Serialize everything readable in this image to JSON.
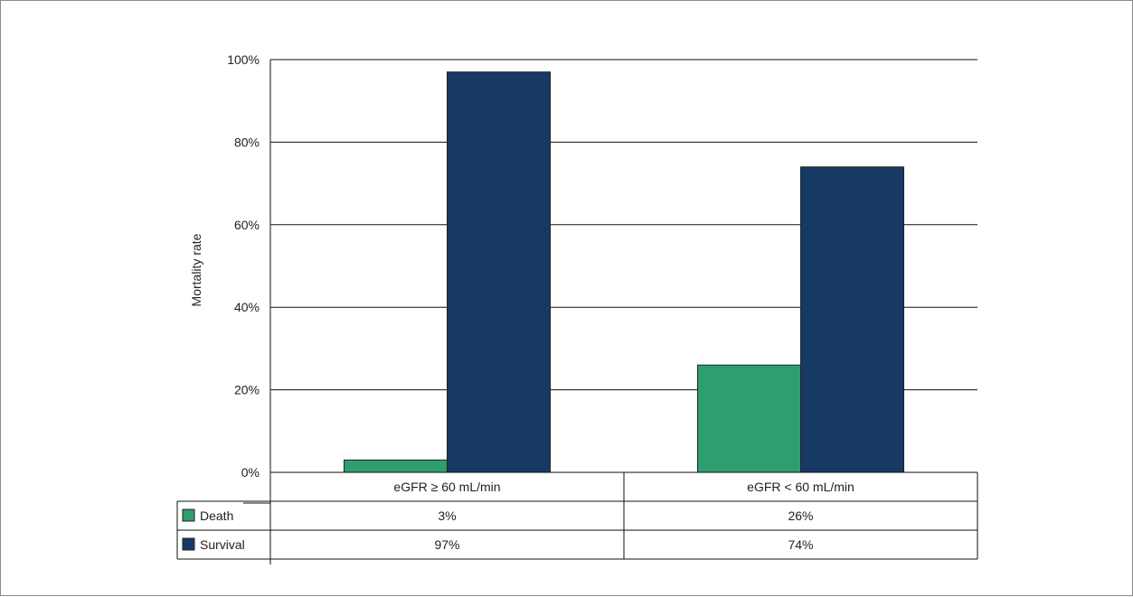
{
  "chart_data": {
    "type": "bar",
    "title": "",
    "ylabel": "Mortality rate",
    "xlabel": "",
    "categories": [
      "eGFR ≥ 60 mL/min",
      "eGFR < 60 mL/min"
    ],
    "series": [
      {
        "name": "Death",
        "values": [
          3,
          26
        ],
        "labels": [
          "3%",
          "26%"
        ],
        "color": "#2e9e6f"
      },
      {
        "name": "Survival",
        "values": [
          97,
          74
        ],
        "labels": [
          "97%",
          "74%"
        ],
        "color": "#163a64"
      }
    ],
    "ylim": [
      0,
      100
    ],
    "yticks": [
      0,
      20,
      40,
      60,
      80,
      100
    ],
    "ytick_labels": [
      "0%",
      "20%",
      "40%",
      "60%",
      "80%",
      "100%"
    ],
    "grid": true,
    "legend": "data table below chart"
  }
}
